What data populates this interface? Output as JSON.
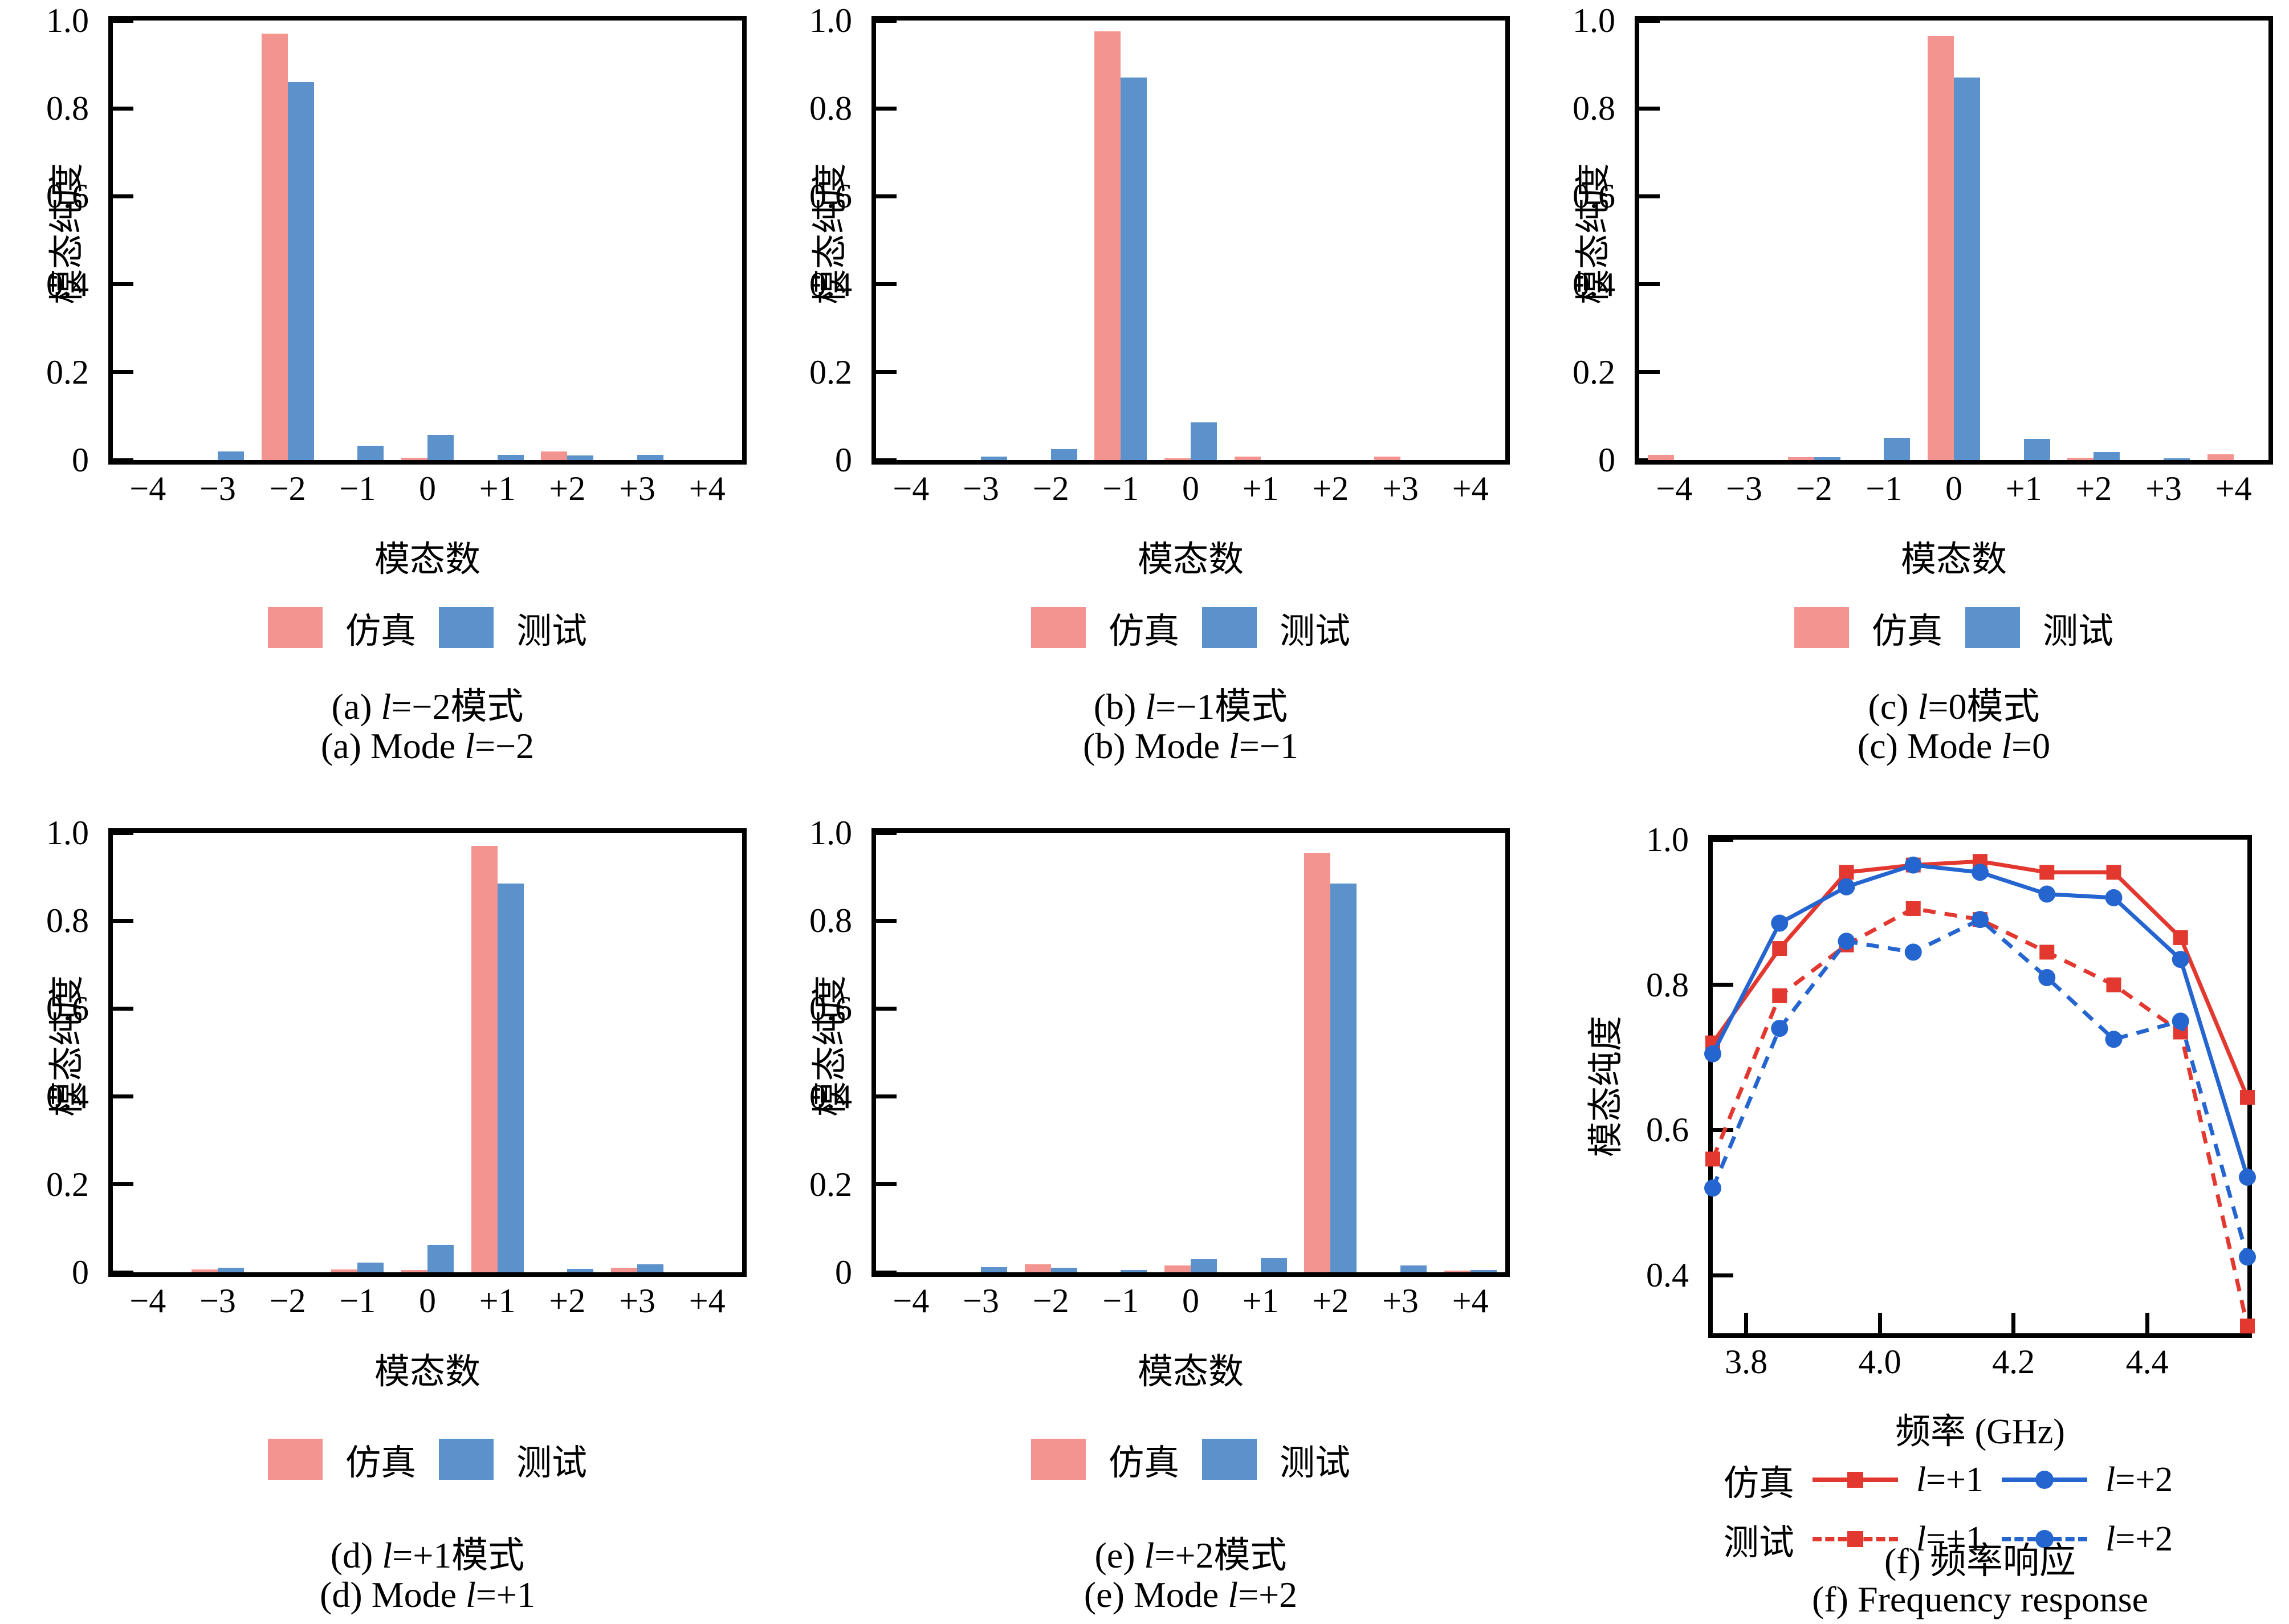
{
  "colors": {
    "sim_bar": "#f49490",
    "test_bar": "#5b92cb",
    "line_red": "#e2382f",
    "line_blue": "#2565d0",
    "axis": "#000000",
    "background": "#ffffff"
  },
  "chart_data": [
    {
      "id": "a",
      "type": "bar",
      "caption_zh": "(a) l=−2模式",
      "caption_en": "(a) Mode l=−2",
      "xlabel": "模态数",
      "ylabel": "模态纯度",
      "categories": [
        "−4",
        "−3",
        "−2",
        "−1",
        "0",
        "+1",
        "+2",
        "+3",
        "+4"
      ],
      "ylim": [
        0,
        1.0
      ],
      "yticks": [
        "1.0",
        "0.8",
        "0.6",
        "0.4",
        "0.2",
        "0"
      ],
      "legend": [
        "仿真",
        "测试"
      ],
      "series": [
        {
          "name": "仿真",
          "color_key": "sim_bar",
          "values": [
            0,
            0,
            0.97,
            0,
            0.005,
            0,
            0.02,
            0,
            0
          ]
        },
        {
          "name": "测试",
          "color_key": "test_bar",
          "values": [
            0,
            0.02,
            0.86,
            0.033,
            0.057,
            0.012,
            0.01,
            0.012,
            0
          ]
        }
      ]
    },
    {
      "id": "b",
      "type": "bar",
      "caption_zh": "(b) l=−1模式",
      "caption_en": "(b) Mode l=−1",
      "xlabel": "模态数",
      "ylabel": "模态纯度",
      "categories": [
        "−4",
        "−3",
        "−2",
        "−1",
        "0",
        "+1",
        "+2",
        "+3",
        "+4"
      ],
      "ylim": [
        0,
        1.0
      ],
      "yticks": [
        "1.0",
        "0.8",
        "0.6",
        "0.4",
        "0.2",
        "0"
      ],
      "legend": [
        "仿真",
        "测试"
      ],
      "series": [
        {
          "name": "仿真",
          "color_key": "sim_bar",
          "values": [
            0,
            0,
            0,
            0.975,
            0.004,
            0.008,
            0,
            0.008,
            0
          ]
        },
        {
          "name": "测试",
          "color_key": "test_bar",
          "values": [
            0,
            0.008,
            0.025,
            0.87,
            0.085,
            0,
            0,
            0,
            0
          ]
        }
      ]
    },
    {
      "id": "c",
      "type": "bar",
      "caption_zh": "(c) l=0模式",
      "caption_en": "(c) Mode l=0",
      "xlabel": "模态数",
      "ylabel": "模态纯度",
      "categories": [
        "−4",
        "−3",
        "−2",
        "−1",
        "0",
        "+1",
        "+2",
        "+3",
        "+4"
      ],
      "ylim": [
        0,
        1.0
      ],
      "yticks": [
        "1.0",
        "0.8",
        "0.6",
        "0.4",
        "0.2",
        "0"
      ],
      "legend": [
        "仿真",
        "测试"
      ],
      "series": [
        {
          "name": "仿真",
          "color_key": "sim_bar",
          "values": [
            0.012,
            0,
            0.006,
            0,
            0.965,
            0,
            0.005,
            0,
            0.013
          ]
        },
        {
          "name": "测试",
          "color_key": "test_bar",
          "values": [
            0,
            0,
            0.006,
            0.05,
            0.87,
            0.048,
            0.018,
            0.004,
            0
          ]
        }
      ]
    },
    {
      "id": "d",
      "type": "bar",
      "caption_zh": "(d) l=+1模式",
      "caption_en": "(d) Mode l=+1",
      "xlabel": "模态数",
      "ylabel": "模态纯度",
      "categories": [
        "−4",
        "−3",
        "−2",
        "−1",
        "0",
        "+1",
        "+2",
        "+3",
        "+4"
      ],
      "ylim": [
        0,
        1.0
      ],
      "yticks": [
        "1.0",
        "0.8",
        "0.6",
        "0.4",
        "0.2",
        "0"
      ],
      "legend": [
        "仿真",
        "测试"
      ],
      "series": [
        {
          "name": "仿真",
          "color_key": "sim_bar",
          "values": [
            0,
            0.006,
            0,
            0.006,
            0.005,
            0.97,
            0,
            0.01,
            0
          ]
        },
        {
          "name": "测试",
          "color_key": "test_bar",
          "values": [
            0,
            0.01,
            0,
            0.022,
            0.062,
            0.885,
            0.008,
            0.018,
            0
          ]
        }
      ]
    },
    {
      "id": "e",
      "type": "bar",
      "caption_zh": "(e) l=+2模式",
      "caption_en": "(e) Mode l=+2",
      "xlabel": "模态数",
      "ylabel": "模态纯度",
      "categories": [
        "−4",
        "−3",
        "−2",
        "−1",
        "0",
        "+1",
        "+2",
        "+3",
        "+4"
      ],
      "ylim": [
        0,
        1.0
      ],
      "yticks": [
        "1.0",
        "0.8",
        "0.6",
        "0.4",
        "0.2",
        "0"
      ],
      "legend": [
        "仿真",
        "测试"
      ],
      "series": [
        {
          "name": "仿真",
          "color_key": "sim_bar",
          "values": [
            0,
            0,
            0.018,
            0,
            0.015,
            0,
            0.955,
            0,
            0.004
          ]
        },
        {
          "name": "测试",
          "color_key": "test_bar",
          "values": [
            0,
            0.012,
            0.01,
            0.005,
            0.03,
            0.033,
            0.885,
            0.015,
            0.005
          ]
        }
      ]
    },
    {
      "id": "f",
      "type": "line",
      "caption_zh": "(f) 频率响应",
      "caption_en": "(f) Frequency response",
      "xlabel": "频率 (GHz)",
      "ylabel": "模态纯度",
      "x": [
        3.75,
        3.85,
        3.95,
        4.05,
        4.15,
        4.25,
        4.35,
        4.45,
        4.55
      ],
      "xlim": [
        3.75,
        4.55
      ],
      "ylim": [
        0.32,
        1.0
      ],
      "xticks": [
        "3.8",
        "4.0",
        "4.2",
        "4.4"
      ],
      "yticks": [
        "1.0",
        "0.8",
        "0.6",
        "0.4"
      ],
      "legend": {
        "row1_name": "仿真",
        "row2_name": "测试",
        "entry1": "l=+1",
        "entry2": "l=+2"
      },
      "series": [
        {
          "name": "仿真 l=+1",
          "line": "solid",
          "marker": "square",
          "color_key": "line_red",
          "values": [
            0.72,
            0.85,
            0.955,
            0.965,
            0.97,
            0.955,
            0.955,
            0.865,
            0.645
          ]
        },
        {
          "name": "仿真 l=+2",
          "line": "solid",
          "marker": "circle",
          "color_key": "line_blue",
          "values": [
            0.705,
            0.885,
            0.935,
            0.965,
            0.955,
            0.925,
            0.92,
            0.835,
            0.535
          ]
        },
        {
          "name": "测试 l=+1",
          "line": "dashed",
          "marker": "square",
          "color_key": "line_red",
          "values": [
            0.56,
            0.785,
            0.855,
            0.905,
            0.89,
            0.845,
            0.8,
            0.735,
            0.33
          ]
        },
        {
          "name": "测试 l=+2",
          "line": "dashed",
          "marker": "circle",
          "color_key": "line_blue",
          "values": [
            0.52,
            0.74,
            0.86,
            0.845,
            0.89,
            0.81,
            0.725,
            0.75,
            0.425
          ]
        }
      ]
    }
  ]
}
